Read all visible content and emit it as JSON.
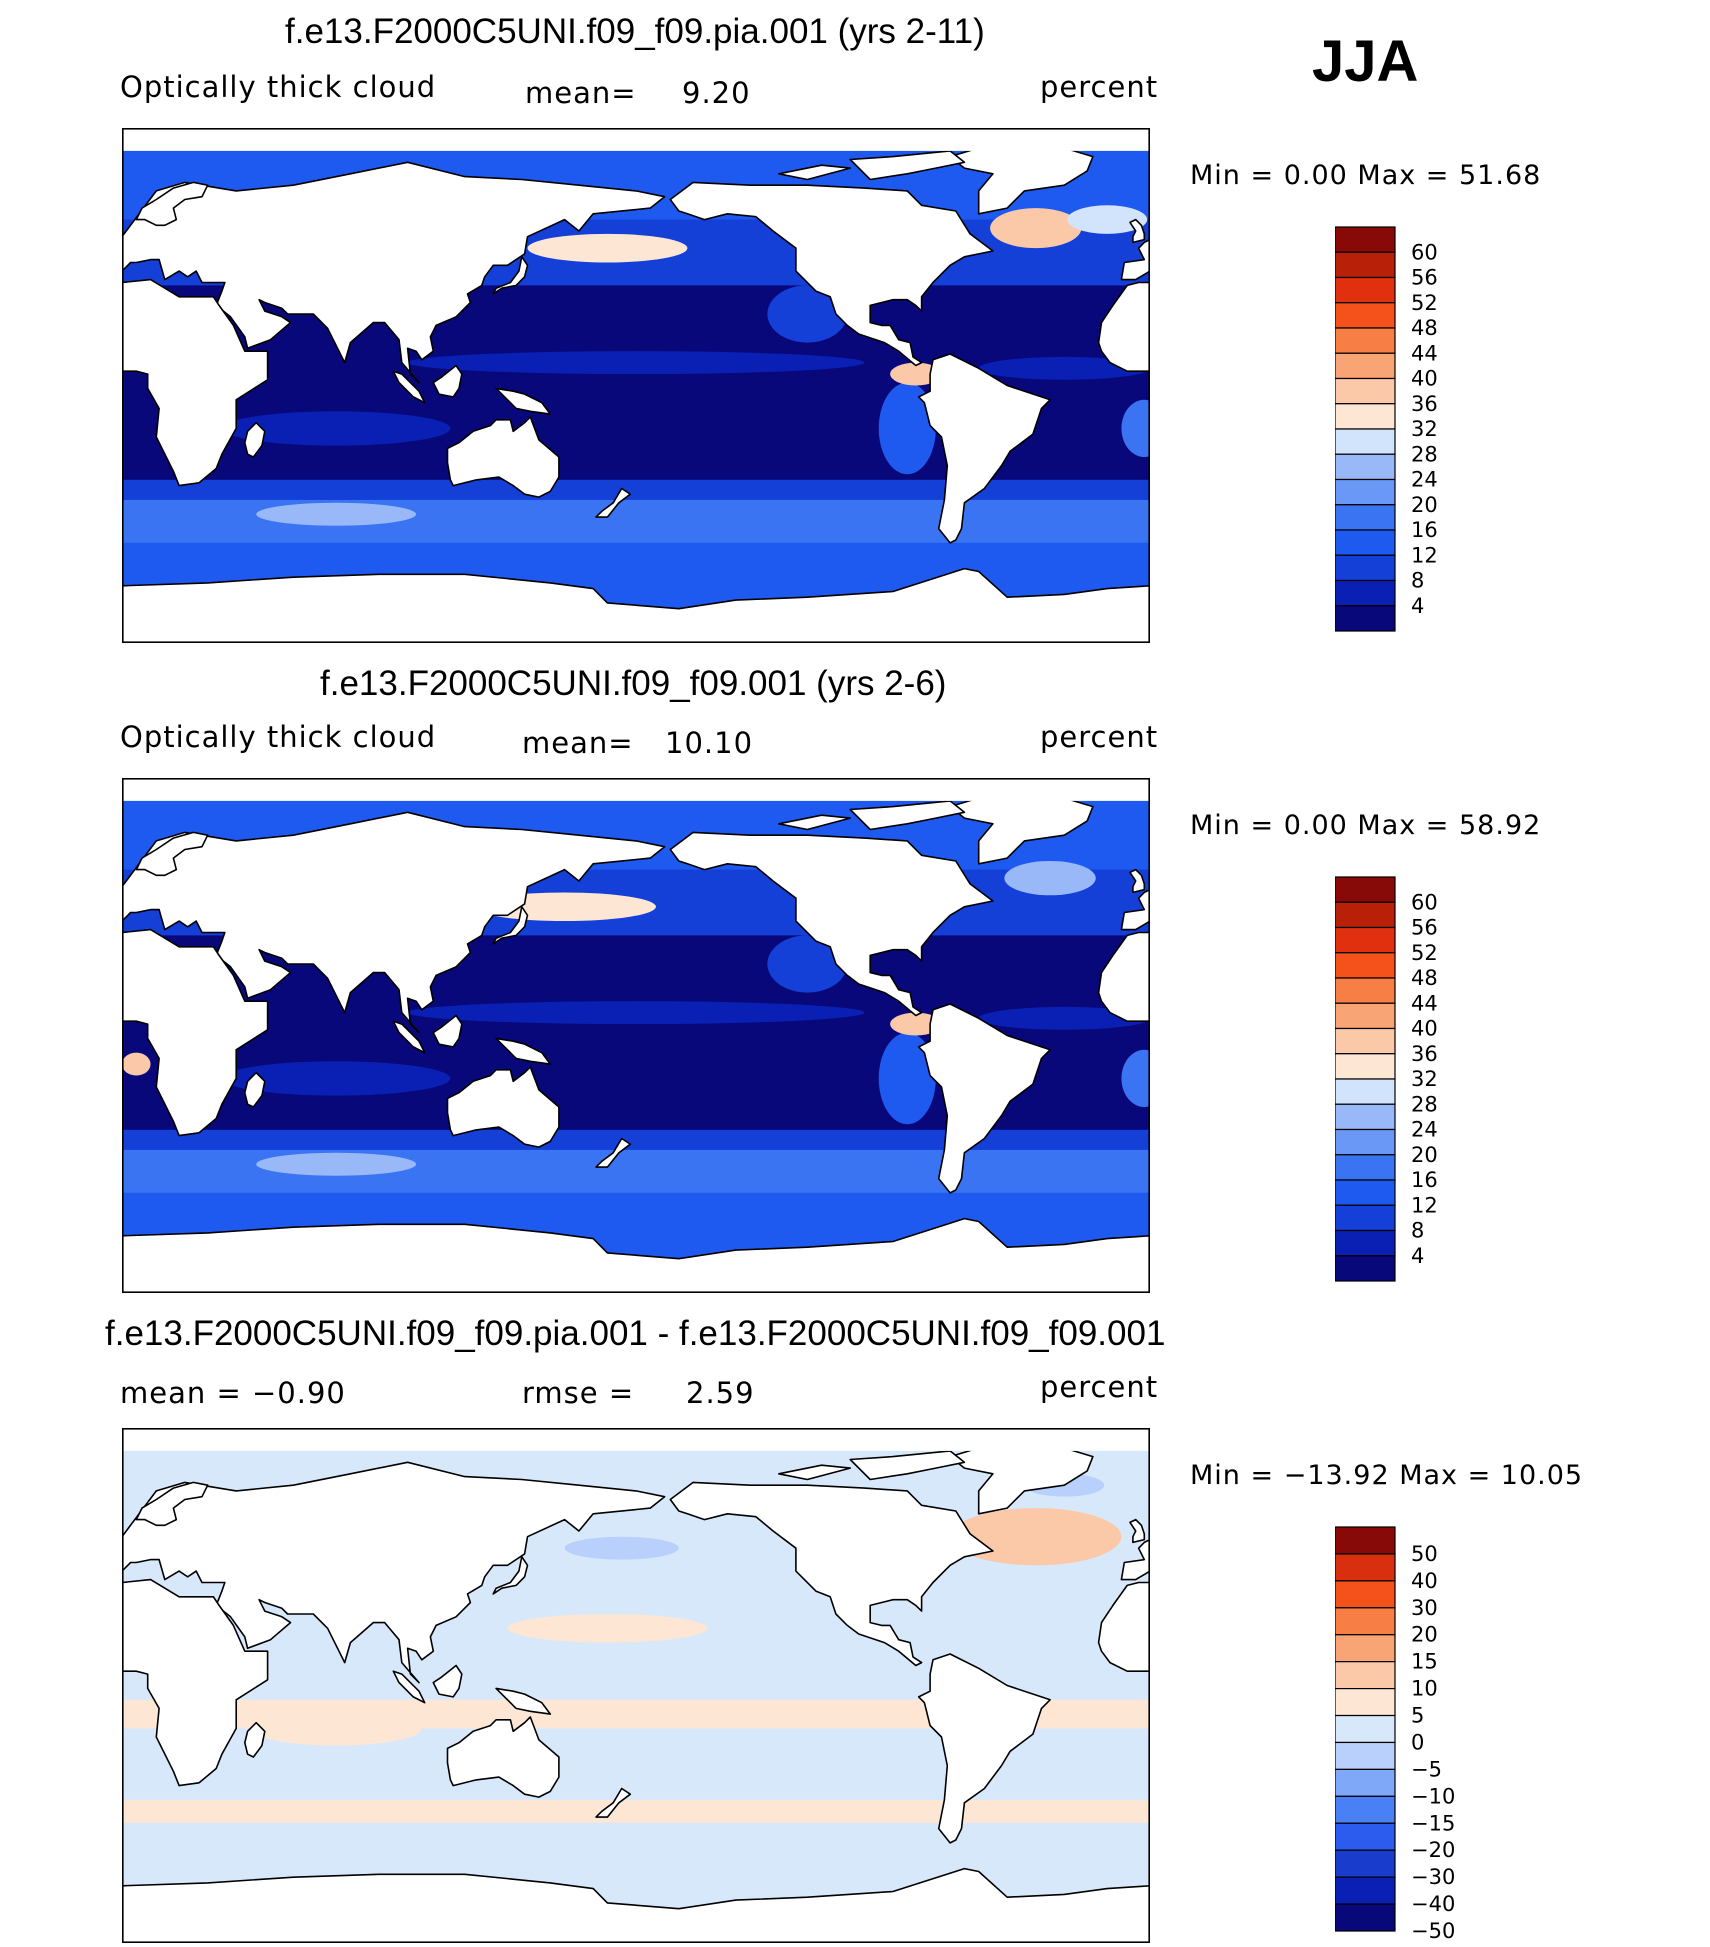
{
  "season": "JJA",
  "palettes": {
    "seq": [
      "#08087a",
      "#0a20b4",
      "#1440d8",
      "#1f5af0",
      "#3b74f2",
      "#6a98f6",
      "#98b8f8",
      "#d2e4fb",
      "#fde6d4",
      "#fbc8a8",
      "#f9a474",
      "#f77e44",
      "#f4521a",
      "#e03010",
      "#b82008",
      "#880a08"
    ],
    "diff": [
      "#08087a",
      "#0a20b4",
      "#1a3ccc",
      "#2c5cee",
      "#4a80f6",
      "#80a8f8",
      "#b8d0fb",
      "#d8e8fb",
      "#fde6d4",
      "#fbc8a8",
      "#f9a474",
      "#f77e44",
      "#f4521a",
      "#d8300e",
      "#880a08"
    ]
  },
  "panels": [
    {
      "title": "f.e13.F2000C5UNI.f09_f09.pia.001 (yrs 2-11)",
      "left_label": "Optically thick cloud",
      "center_label": "mean=",
      "center_value": "9.20",
      "units": "percent",
      "minmax": "Min =     0.00 Max =   51.68",
      "colorbar_labels": [
        "60",
        "56",
        "52",
        "48",
        "44",
        "40",
        "36",
        "32",
        "28",
        "24",
        "20",
        "16",
        "12",
        "8",
        "4"
      ],
      "field": "pia"
    },
    {
      "title": "f.e13.F2000C5UNI.f09_f09.001 (yrs 2-6)",
      "left_label": "Optically thick cloud",
      "center_label": "mean=",
      "center_value": "10.10",
      "units": "percent",
      "minmax": "Min =     0.00 Max =   58.92",
      "colorbar_labels": [
        "60",
        "56",
        "52",
        "48",
        "44",
        "40",
        "36",
        "32",
        "28",
        "24",
        "20",
        "16",
        "12",
        "8",
        "4"
      ],
      "field": "ctl"
    },
    {
      "title": "f.e13.F2000C5UNI.f09_f09.pia.001 - f.e13.F2000C5UNI.f09_f09.001",
      "left_label": "mean =   −0.90",
      "center_label": "rmse =",
      "center_value": "2.59",
      "units": "percent",
      "minmax": "Min = −13.92  Max =    10.05",
      "colorbar_labels": [
        "50",
        "40",
        "30",
        "20",
        "15",
        "10",
        "5",
        "0",
        "−5",
        "−10",
        "−15",
        "−20",
        "−30",
        "−40",
        "−50"
      ],
      "field": "diff"
    }
  ]
}
